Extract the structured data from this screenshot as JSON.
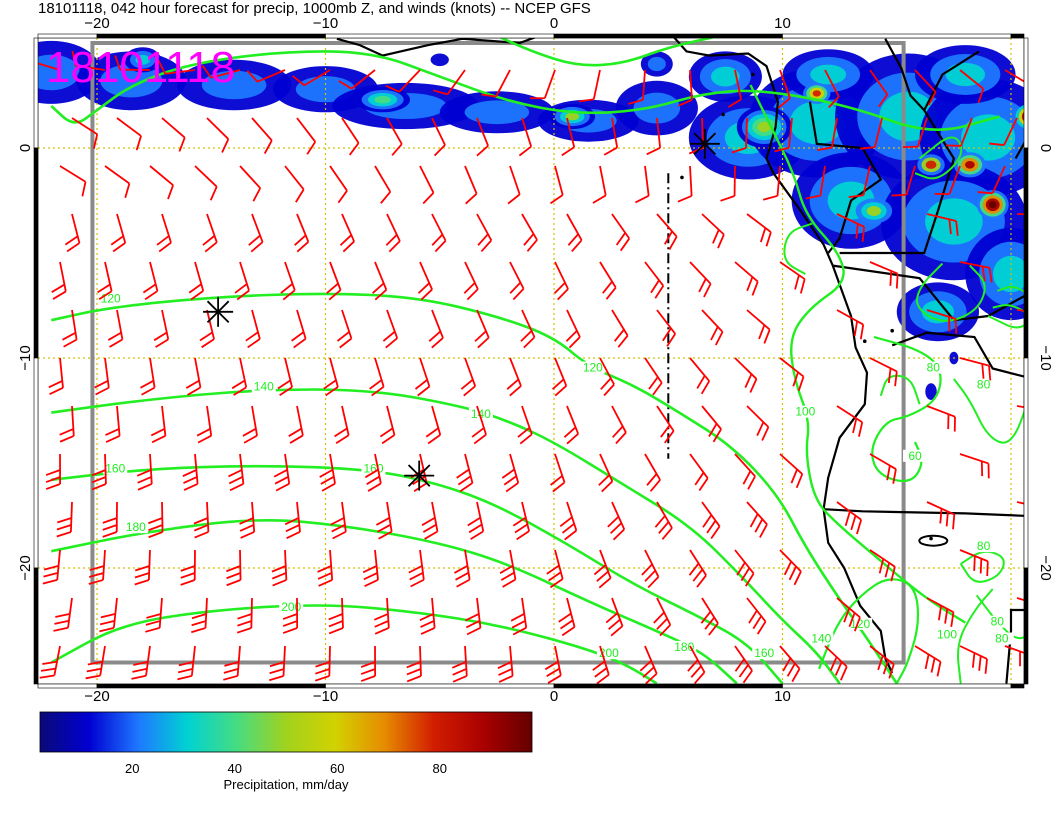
{
  "title": "18101118, 042 hour forecast for precip, 1000mb Z, and winds (knots) -- NCEP GFS",
  "stamp": "18101118",
  "axes": {
    "lon_ticks": [
      {
        "value": -20,
        "label": "−20"
      },
      {
        "value": -10,
        "label": "−10"
      },
      {
        "value": 0,
        "label": "0"
      },
      {
        "value": 10,
        "label": "10"
      }
    ],
    "lat_ticks": [
      {
        "value": 0,
        "label": "0"
      },
      {
        "value": -10,
        "label": "−10"
      },
      {
        "value": -20,
        "label": "−20"
      }
    ]
  },
  "contours": {
    "color": "#22ee22",
    "labels": [
      {
        "text": "120",
        "lon": -19.4,
        "lat": -7.3
      },
      {
        "text": "140",
        "lon": -12.7,
        "lat": -11.5
      },
      {
        "text": "160",
        "lon": -19.2,
        "lat": -15.4
      },
      {
        "text": "180",
        "lon": -18.3,
        "lat": -18.2
      },
      {
        "text": "200",
        "lon": -11.5,
        "lat": -22.0
      },
      {
        "text": "160",
        "lon": -7.9,
        "lat": -15.4
      },
      {
        "text": "140",
        "lon": -3.2,
        "lat": -12.8
      },
      {
        "text": "120",
        "lon": 1.7,
        "lat": -10.6
      },
      {
        "text": "100",
        "lon": 11.0,
        "lat": -12.7
      },
      {
        "text": "80",
        "lon": 16.6,
        "lat": -10.6
      },
      {
        "text": "80",
        "lon": 18.8,
        "lat": -11.4
      },
      {
        "text": "60",
        "lon": 15.8,
        "lat": -14.8
      },
      {
        "text": "80",
        "lon": 18.8,
        "lat": -19.1
      },
      {
        "text": "200",
        "lon": 2.4,
        "lat": -24.2
      },
      {
        "text": "180",
        "lon": 5.7,
        "lat": -23.9
      },
      {
        "text": "160",
        "lon": 9.2,
        "lat": -24.2
      },
      {
        "text": "140",
        "lon": 11.7,
        "lat": -23.5
      },
      {
        "text": "120",
        "lon": 13.4,
        "lat": -22.8
      },
      {
        "text": "100",
        "lon": 17.2,
        "lat": -23.3
      },
      {
        "text": "80",
        "lon": 19.6,
        "lat": -23.5
      },
      {
        "text": "80",
        "lon": 19.4,
        "lat": -22.7
      }
    ]
  },
  "highs_lows": [
    {
      "lon": -14.7,
      "lat": -7.8
    },
    {
      "lon": -5.9,
      "lat": -15.6
    },
    {
      "lon": 6.6,
      "lat": 0.2
    }
  ],
  "colorbar": {
    "label": "Precipitation, mm/day",
    "ticks": [
      {
        "value": 20,
        "label": "20"
      },
      {
        "value": 40,
        "label": "40"
      },
      {
        "value": 60,
        "label": "60"
      },
      {
        "value": 80,
        "label": "80"
      }
    ],
    "range": [
      2,
      98
    ],
    "colors": [
      "#0a0a78",
      "#0000d2",
      "#1e78ff",
      "#00d2d2",
      "#46dc82",
      "#a0d21e",
      "#d2d200",
      "#e68c00",
      "#d21e00",
      "#aa0000",
      "#640000"
    ]
  },
  "wind_barb_color": "#ff0000",
  "coast_color": "#000000",
  "grid_color": "#d4c200"
}
